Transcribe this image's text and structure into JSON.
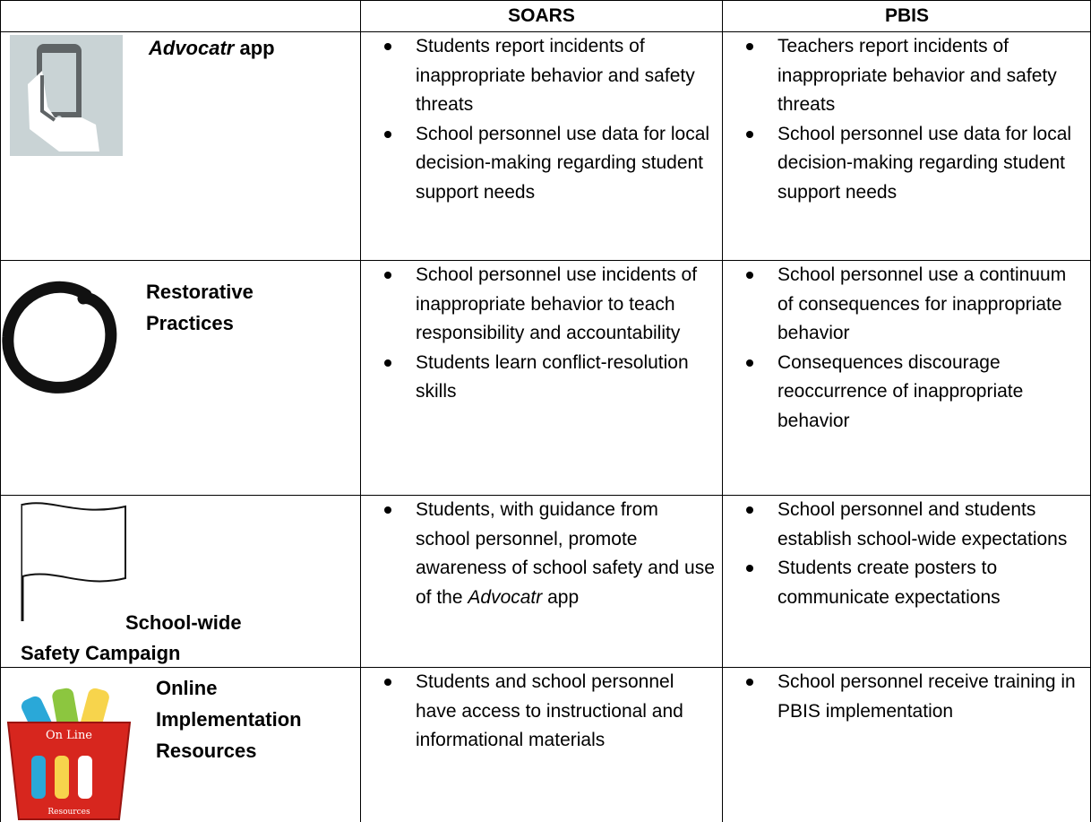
{
  "header": {
    "columns": [
      "SOARS",
      "PBIS"
    ]
  },
  "rows": [
    {
      "label": [
        [
          {
            "text": "Advocatr",
            "italic": true
          },
          {
            "text": " app"
          }
        ]
      ],
      "soars": [
        "Students report incidents of inappropriate behavior and safety threats",
        "School personnel use data for local decision-making regarding student support needs"
      ],
      "pbis": [
        "Teachers report incidents of inappropriate behavior and safety threats",
        "School personnel use data for local decision-making regarding student support needs"
      ]
    },
    {
      "label": [
        "Restorative",
        "Practices"
      ],
      "soars": [
        "School personnel use incidents of inappropriate behavior to teach responsibility and accountability",
        "Students learn conflict-resolution skills"
      ],
      "pbis": [
        "School personnel use a continuum of consequences for inappropriate behavior",
        "Consequences discourage reoccurrence of inappropriate behavior"
      ]
    },
    {
      "label": [
        "School-wide",
        "Safety Campaign"
      ],
      "soars": [
        [
          {
            "text": "Students, with guidance from school personnel, promote awareness of school safety and use of the "
          },
          {
            "text": "Advocatr",
            "italic": true
          },
          {
            "text": " app"
          }
        ]
      ],
      "pbis": [
        "School personnel and students establish school-wide expectations",
        "Students create posters to communicate expectations"
      ]
    },
    {
      "label": [
        "Online",
        "Implementation",
        "Resources"
      ],
      "icon_text": [
        "On Line",
        "Resources"
      ],
      "soars": [
        "Students and school personnel have access to instructional and informational materials"
      ],
      "pbis": [
        "School personnel receive training in PBIS implementation"
      ]
    }
  ]
}
